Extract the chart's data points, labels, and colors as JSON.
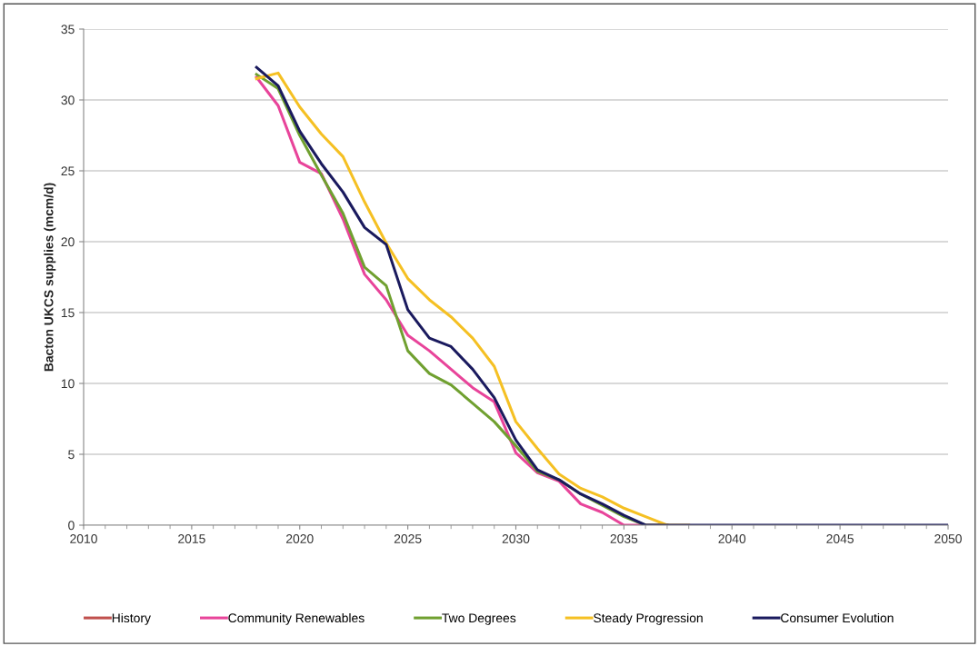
{
  "chart_data": {
    "type": "line",
    "ylabel": "Bacton UKCS supplies (mcm/d)",
    "x": [
      2018,
      2019,
      2020,
      2021,
      2022,
      2023,
      2024,
      2025,
      2026,
      2027,
      2028,
      2029,
      2030,
      2031,
      2032,
      2033,
      2034,
      2035,
      2036,
      2037,
      2038,
      2039,
      2040,
      2041,
      2042,
      2043,
      2044,
      2045,
      2046,
      2047,
      2048,
      2049,
      2050
    ],
    "series": [
      {
        "name": "History",
        "color": "#c0504d",
        "values": [
          null,
          null,
          null,
          null,
          null,
          null,
          null,
          null,
          null,
          null,
          null,
          null,
          null,
          null,
          null,
          null,
          null,
          null,
          null,
          null,
          null,
          null,
          null,
          null,
          null,
          null,
          null,
          null,
          null,
          null,
          null,
          null,
          null
        ]
      },
      {
        "name": "Community Renewables",
        "color": "#e8449a",
        "values": [
          31.6,
          29.6,
          25.6,
          24.8,
          21.6,
          17.7,
          15.9,
          13.4,
          12.3,
          11.0,
          9.7,
          8.7,
          5.1,
          3.7,
          3.1,
          1.5,
          0.9,
          0,
          0,
          0,
          null,
          null,
          null,
          null,
          null,
          null,
          null,
          null,
          null,
          null,
          null,
          null,
          null
        ]
      },
      {
        "name": "Two Degrees",
        "color": "#70a030",
        "values": [
          31.8,
          30.8,
          27.5,
          24.7,
          22.0,
          18.2,
          16.9,
          12.3,
          10.7,
          9.9,
          8.6,
          7.3,
          5.6,
          3.8,
          3.2,
          2.2,
          1.4,
          0.6,
          0,
          0,
          null,
          null,
          null,
          null,
          null,
          null,
          null,
          null,
          null,
          null,
          null,
          null,
          null
        ]
      },
      {
        "name": "Steady Progression",
        "color": "#f5c023",
        "values": [
          31.5,
          31.9,
          29.5,
          27.6,
          26.0,
          22.8,
          19.9,
          17.4,
          15.9,
          14.7,
          13.2,
          11.2,
          7.3,
          5.4,
          3.6,
          2.6,
          2.0,
          1.2,
          0.6,
          0,
          0,
          null,
          null,
          null,
          null,
          null,
          null,
          null,
          null,
          null,
          null,
          null,
          null
        ]
      },
      {
        "name": "Consumer Evolution",
        "color": "#1a1a5e",
        "values": [
          32.3,
          31.0,
          27.8,
          25.5,
          23.5,
          21.0,
          19.8,
          15.2,
          13.2,
          12.6,
          11.0,
          9.0,
          6.0,
          3.9,
          3.2,
          2.2,
          1.5,
          0.7,
          0,
          0,
          0,
          0,
          0,
          0,
          0,
          0,
          0,
          0,
          0,
          0,
          0,
          0,
          0
        ]
      }
    ],
    "xlim": [
      2010,
      2050
    ],
    "xticks": [
      2010,
      2015,
      2020,
      2025,
      2030,
      2035,
      2040,
      2045,
      2050
    ],
    "ylim": [
      0,
      35
    ],
    "yticks": [
      0,
      5,
      10,
      15,
      20,
      25,
      30,
      35
    ],
    "grid": "y",
    "legend": "bottom",
    "marker": "none",
    "line_style": "solid"
  }
}
